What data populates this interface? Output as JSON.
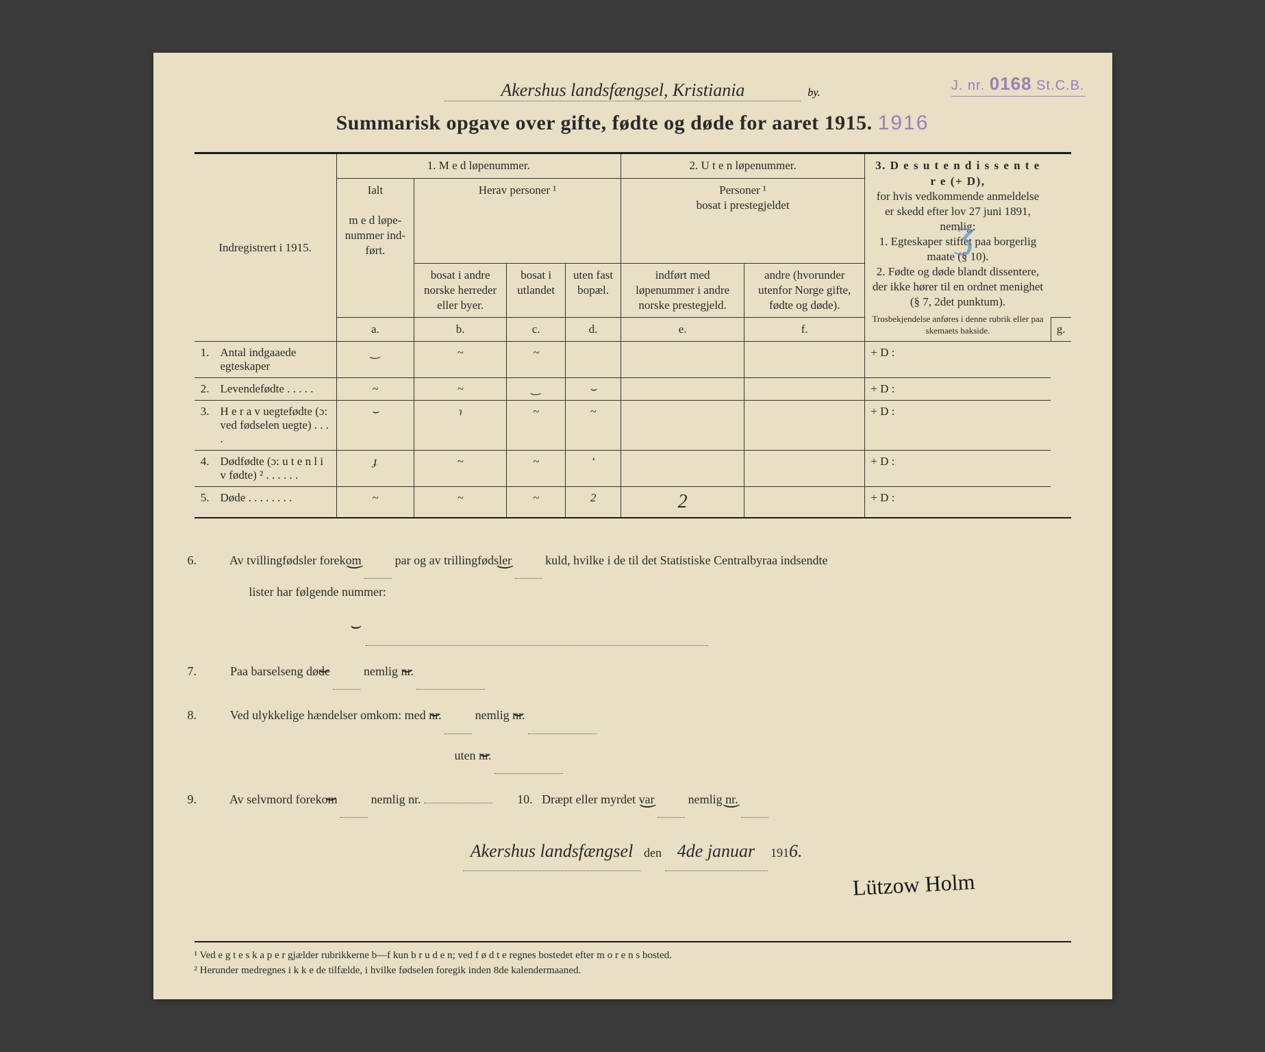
{
  "header": {
    "handwritten_location": "Akershus landsfængsel, Kristiania",
    "by_label": "by.",
    "stamp_prefix": "J. nr.",
    "stamp_number": "0168",
    "stamp_suffix": "St.C.B.",
    "title": "Summarisk opgave over gifte, fødte og døde for aaret 1915.",
    "title_year_stamp": "1916"
  },
  "table": {
    "indreg_label": "Indregistrert i 1915.",
    "group1": "1.  M e d  løpenummer.",
    "group1_ialt": "Ialt",
    "group1_ialt_sub": "m e d løpe-nummer ind-ført.",
    "group1_herav": "Herav personer ¹",
    "group2": "2. U t e n løpenummer.",
    "group2_sub": "Personer ¹\nbosat i prestegjeldet",
    "group3_title": "3.  D e s u t e n  d i s s e n t e r e (+ D),",
    "group3_body": "for hvis vedkommende anmeldelse er skedd efter lov 27 juni 1891, nemlig:\n1.  Egteskaper stiftet paa borgerlig maate (§ 10).\n2.  Fødte og døde blandt dissentere, der ikke hører til en ordnet menighet (§ 7, 2det punktum).",
    "group3_small": "Trosbekjendelse anføres i denne rubrik eller paa skemaets bakside.",
    "cols": {
      "a": "a.",
      "b": "b.",
      "c": "c.",
      "d": "d.",
      "e": "e.",
      "f": "f.",
      "g": "g."
    },
    "col_b": "bosat i andre norske herreder eller byer.",
    "col_c": "bosat i utlandet",
    "col_d": "uten fast bopæl.",
    "col_e": "indført med løpenummer i andre norske prestegjeld.",
    "col_f": "andre (hvorunder utenfor Norge gifte, fødte og døde).",
    "rows": [
      {
        "n": "1.",
        "label": "Antal indgaaede egteskaper",
        "a": "‿",
        "b": "~",
        "c": "~",
        "d": "",
        "e": "",
        "f": "",
        "g": "+ D :"
      },
      {
        "n": "2.",
        "label": "Levendefødte  .  .  .  .  .",
        "a": "~",
        "b": "~",
        "c": "‿",
        "d": "⌣",
        "e": "",
        "f": "",
        "g": "+ D :"
      },
      {
        "n": "3.",
        "label": "H e r a v uegtefødte (ɔ: ved fødselen uegte)  .  .  .  .",
        "a": "⌣",
        "b": "ɿ",
        "c": "~",
        "d": "~",
        "e": "",
        "f": "",
        "g": "+ D :"
      },
      {
        "n": "4.",
        "label": "Dødfødte (ɔ: u t e n  l i v fødte) ²  .  .  .  .  .  .",
        "a": "ɟ",
        "b": "~",
        "c": "~",
        "d": "ʻ",
        "e": "",
        "f": "",
        "g": "+ D :"
      },
      {
        "n": "5.",
        "label": "Døde .  .  .  .  .  .  .  .",
        "a": "~",
        "b": "~",
        "c": "~",
        "d": "2",
        "e": "2",
        "f": "",
        "g": "+ D :"
      }
    ]
  },
  "bottom": {
    "line6_a": "Av tvillingfødsler forekom",
    "line6_b": "par og av trillingfødsler",
    "line6_c": "kuld, hvilke i de til det Statistiske Centralbyraa indsendte",
    "line6_d": "lister har følgende nummer:",
    "line7_a": "Paa barselseng døde",
    "line7_b": "nemlig nr.",
    "line8_a": "Ved ulykkelige hændelser omkom:  med nr.",
    "line8_b": "nemlig nr.",
    "line8_c": "uten nr.",
    "line9_a": "Av selvmord forekom",
    "line9_b": "nemlig nr.",
    "line10_a": "Dræpt eller myrdet var",
    "line10_b": "nemlig nr.",
    "sig_place": "Akershus landsfængsel",
    "sig_den": "den",
    "sig_date": "4de januar",
    "sig_year": "1916.",
    "signature": "Lützow Holm"
  },
  "footnotes": {
    "f1": "¹  Ved  e g t e s k a p e r  gjælder rubrikkerne b—f kun  b r u d e n;  ved  f ø d t e  regnes bostedet efter  m o r e n s  bosted.",
    "f2": "²  Herunder medregnes  i k k e  de tilfælde, i hvilke fødselen foregik inden 8de kalendermaaned."
  },
  "style": {
    "paper_bg": "#e8dfc4",
    "ink": "#2a2a2a",
    "stamp_color": "#9b7fb8",
    "blue_pencil": "#5a8fc4"
  }
}
